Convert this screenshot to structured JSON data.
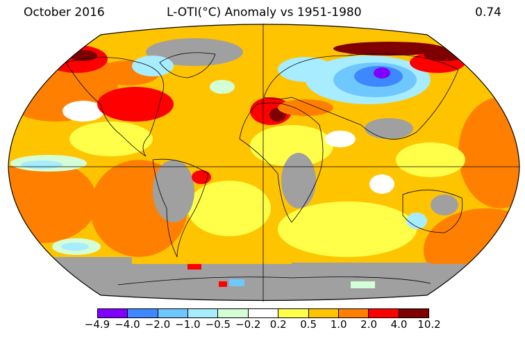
{
  "header": {
    "period": "October 2016",
    "title": "L-OTI(°C) Anomaly vs 1951-1980",
    "global_value": "0.74"
  },
  "legend": {
    "colors": [
      "#8000ff",
      "#3d87ff",
      "#6ec8ff",
      "#a8ecff",
      "#d4ffd6",
      "#ffffff",
      "#ffff4a",
      "#ffc400",
      "#ff8000",
      "#ff0000",
      "#7f0000"
    ],
    "labels": [
      "−4.9",
      "−4.0",
      "−2.0",
      "−1.0",
      "−0.5",
      "−0.2",
      "0.2",
      "0.5",
      "1.0",
      "2.0",
      "4.0",
      "10.2"
    ]
  },
  "map": {
    "projection": "Robinson",
    "missing_data_color": "#a0a0a0"
  }
}
